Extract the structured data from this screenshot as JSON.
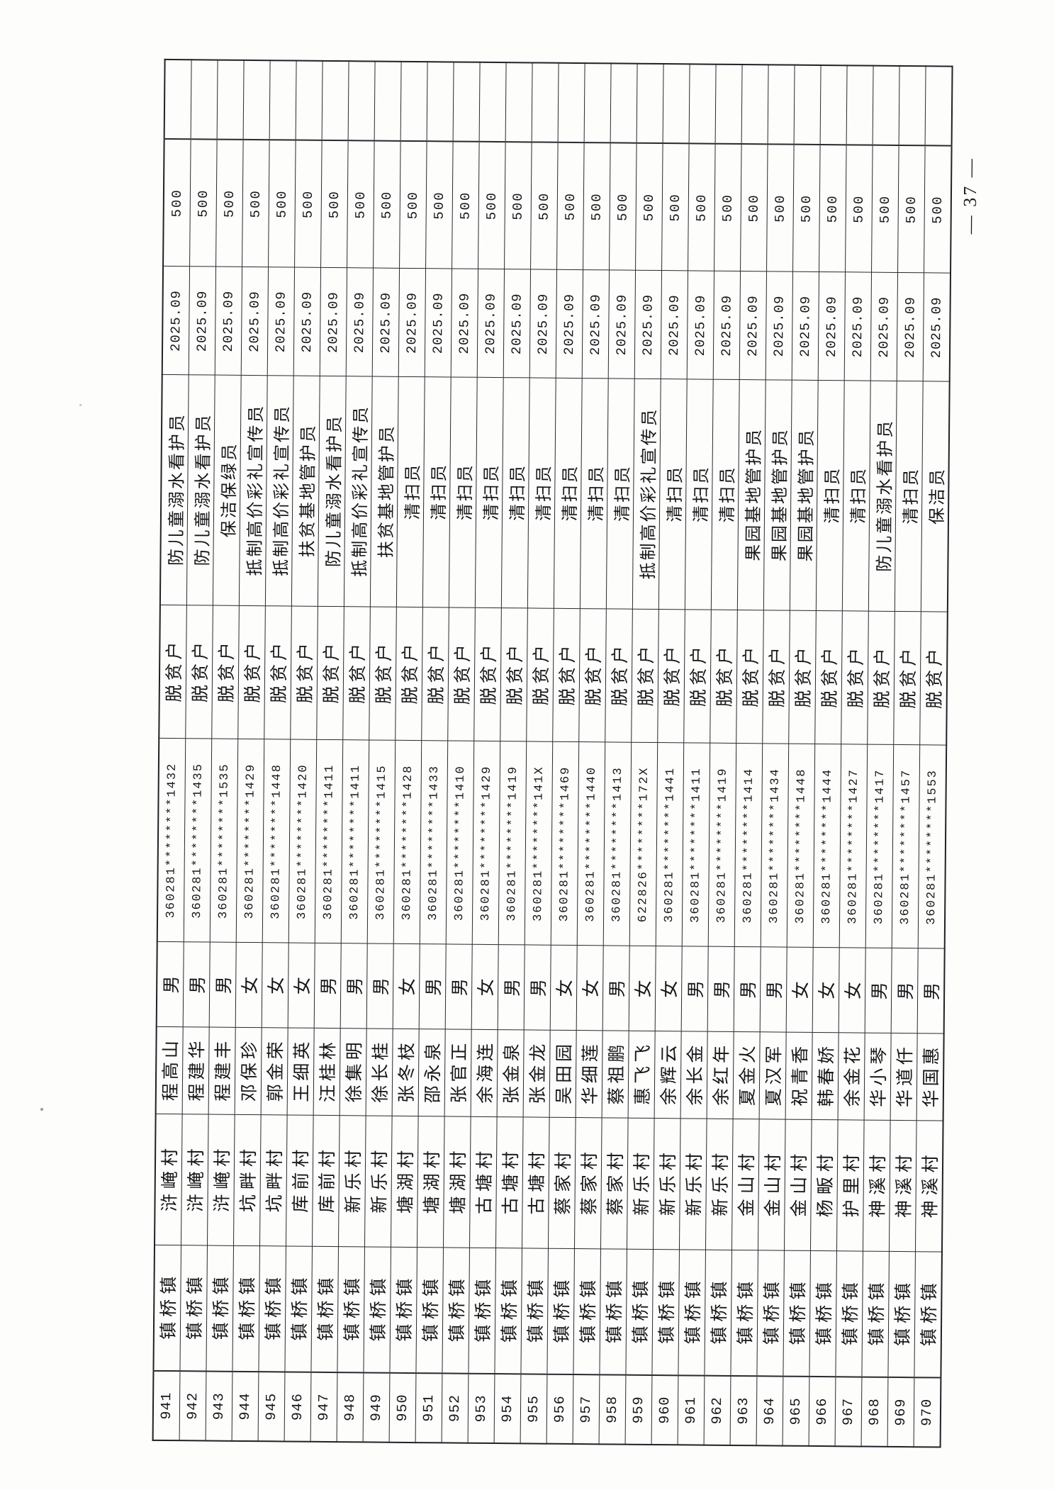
{
  "page": {
    "page_number": "— 37 —"
  },
  "table": {
    "town_repeated": "镇桥镇",
    "category_repeated": "脱贫户",
    "month_repeated": "2025.09",
    "amount_repeated": "500",
    "rows": [
      {
        "no": "941",
        "town": "镇桥镇",
        "village": "浒崦村",
        "name": "程高山",
        "gender": "男",
        "id_number": "360281********1432",
        "category": "脱贫户",
        "job": "防儿童溺水看护员",
        "month": "2025.09",
        "amount": "500"
      },
      {
        "no": "942",
        "town": "镇桥镇",
        "village": "浒崦村",
        "name": "程建华",
        "gender": "男",
        "id_number": "360281********1435",
        "category": "脱贫户",
        "job": "防儿童溺水看护员",
        "month": "2025.09",
        "amount": "500"
      },
      {
        "no": "943",
        "town": "镇桥镇",
        "village": "浒崦村",
        "name": "程建丰",
        "gender": "男",
        "id_number": "360281********1535",
        "category": "脱贫户",
        "job": "保洁保绿员",
        "month": "2025.09",
        "amount": "500"
      },
      {
        "no": "944",
        "town": "镇桥镇",
        "village": "坑畔村",
        "name": "邓保珍",
        "gender": "女",
        "id_number": "360281********1429",
        "category": "脱贫户",
        "job": "抵制高价彩礼宣传员",
        "month": "2025.09",
        "amount": "500"
      },
      {
        "no": "945",
        "town": "镇桥镇",
        "village": "坑畔村",
        "name": "郭金荣",
        "gender": "女",
        "id_number": "360281********1448",
        "category": "脱贫户",
        "job": "抵制高价彩礼宣传员",
        "month": "2025.09",
        "amount": "500"
      },
      {
        "no": "946",
        "town": "镇桥镇",
        "village": "库前村",
        "name": "王细英",
        "gender": "女",
        "id_number": "360281********1420",
        "category": "脱贫户",
        "job": "扶贫基地管护员",
        "month": "2025.09",
        "amount": "500"
      },
      {
        "no": "947",
        "town": "镇桥镇",
        "village": "库前村",
        "name": "汪桂林",
        "gender": "男",
        "id_number": "360281********1411",
        "category": "脱贫户",
        "job": "防儿童溺水看护员",
        "month": "2025.09",
        "amount": "500"
      },
      {
        "no": "948",
        "town": "镇桥镇",
        "village": "新乐村",
        "name": "徐集明",
        "gender": "男",
        "id_number": "360281********1411",
        "category": "脱贫户",
        "job": "抵制高价彩礼宣传员",
        "month": "2025.09",
        "amount": "500"
      },
      {
        "no": "949",
        "town": "镇桥镇",
        "village": "新乐村",
        "name": "徐长桂",
        "gender": "男",
        "id_number": "360281********1415",
        "category": "脱贫户",
        "job": "扶贫基地管护员",
        "month": "2025.09",
        "amount": "500"
      },
      {
        "no": "950",
        "town": "镇桥镇",
        "village": "塘湖村",
        "name": "张冬枝",
        "gender": "女",
        "id_number": "360281********1428",
        "category": "脱贫户",
        "job": "清扫员",
        "month": "2025.09",
        "amount": "500"
      },
      {
        "no": "951",
        "town": "镇桥镇",
        "village": "塘湖村",
        "name": "邵永泉",
        "gender": "男",
        "id_number": "360281********1433",
        "category": "脱贫户",
        "job": "清扫员",
        "month": "2025.09",
        "amount": "500"
      },
      {
        "no": "952",
        "town": "镇桥镇",
        "village": "塘湖村",
        "name": "张官正",
        "gender": "男",
        "id_number": "360281********1410",
        "category": "脱贫户",
        "job": "清扫员",
        "month": "2025.09",
        "amount": "500"
      },
      {
        "no": "953",
        "town": "镇桥镇",
        "village": "古塘村",
        "name": "余海连",
        "gender": "女",
        "id_number": "360281********1429",
        "category": "脱贫户",
        "job": "清扫员",
        "month": "2025.09",
        "amount": "500"
      },
      {
        "no": "954",
        "town": "镇桥镇",
        "village": "古塘村",
        "name": "张金泉",
        "gender": "男",
        "id_number": "360281********1419",
        "category": "脱贫户",
        "job": "清扫员",
        "month": "2025.09",
        "amount": "500"
      },
      {
        "no": "955",
        "town": "镇桥镇",
        "village": "古塘村",
        "name": "张金龙",
        "gender": "男",
        "id_number": "360281********141X",
        "category": "脱贫户",
        "job": "清扫员",
        "month": "2025.09",
        "amount": "500"
      },
      {
        "no": "956",
        "town": "镇桥镇",
        "village": "蔡家村",
        "name": "吴田园",
        "gender": "女",
        "id_number": "360281********1469",
        "category": "脱贫户",
        "job": "清扫员",
        "month": "2025.09",
        "amount": "500"
      },
      {
        "no": "957",
        "town": "镇桥镇",
        "village": "蔡家村",
        "name": "华细莲",
        "gender": "女",
        "id_number": "360281********1440",
        "category": "脱贫户",
        "job": "清扫员",
        "month": "2025.09",
        "amount": "500"
      },
      {
        "no": "958",
        "town": "镇桥镇",
        "village": "蔡家村",
        "name": "蔡祖鹏",
        "gender": "男",
        "id_number": "360281********1413",
        "category": "脱贫户",
        "job": "清扫员",
        "month": "2025.09",
        "amount": "500"
      },
      {
        "no": "959",
        "town": "镇桥镇",
        "village": "新乐村",
        "name": "惠飞飞",
        "gender": "女",
        "id_number": "622826********172X",
        "category": "脱贫户",
        "job": "抵制高价彩礼宣传员",
        "month": "2025.09",
        "amount": "500"
      },
      {
        "no": "960",
        "town": "镇桥镇",
        "village": "新乐村",
        "name": "余辉云",
        "gender": "女",
        "id_number": "360281********1441",
        "category": "脱贫户",
        "job": "清扫员",
        "month": "2025.09",
        "amount": "500"
      },
      {
        "no": "961",
        "town": "镇桥镇",
        "village": "新乐村",
        "name": "余长金",
        "gender": "男",
        "id_number": "360281********1411",
        "category": "脱贫户",
        "job": "清扫员",
        "month": "2025.09",
        "amount": "500"
      },
      {
        "no": "962",
        "town": "镇桥镇",
        "village": "新乐村",
        "name": "余红年",
        "gender": "男",
        "id_number": "360281********1419",
        "category": "脱贫户",
        "job": "清扫员",
        "month": "2025.09",
        "amount": "500"
      },
      {
        "no": "963",
        "town": "镇桥镇",
        "village": "金山村",
        "name": "夏金火",
        "gender": "男",
        "id_number": "360281********1414",
        "category": "脱贫户",
        "job": "果园基地管护员",
        "month": "2025.09",
        "amount": "500"
      },
      {
        "no": "964",
        "town": "镇桥镇",
        "village": "金山村",
        "name": "夏汉军",
        "gender": "男",
        "id_number": "360281********1434",
        "category": "脱贫户",
        "job": "果园基地管护员",
        "month": "2025.09",
        "amount": "500"
      },
      {
        "no": "965",
        "town": "镇桥镇",
        "village": "金山村",
        "name": "祝青香",
        "gender": "女",
        "id_number": "360281********1448",
        "category": "脱贫户",
        "job": "果园基地管护员",
        "month": "2025.09",
        "amount": "500"
      },
      {
        "no": "966",
        "town": "镇桥镇",
        "village": "杨畈村",
        "name": "韩春娇",
        "gender": "女",
        "id_number": "360281********1444",
        "category": "脱贫户",
        "job": "清扫员",
        "month": "2025.09",
        "amount": "500"
      },
      {
        "no": "967",
        "town": "镇桥镇",
        "village": "护里村",
        "name": "余金花",
        "gender": "女",
        "id_number": "360281********1427",
        "category": "脱贫户",
        "job": "清扫员",
        "month": "2025.09",
        "amount": "500"
      },
      {
        "no": "968",
        "town": "镇桥镇",
        "village": "神溪村",
        "name": "华小琴",
        "gender": "男",
        "id_number": "360281********1417",
        "category": "脱贫户",
        "job": "防儿童溺水看护员",
        "month": "2025.09",
        "amount": "500"
      },
      {
        "no": "969",
        "town": "镇桥镇",
        "village": "神溪村",
        "name": "华道仟",
        "gender": "男",
        "id_number": "360281********1457",
        "category": "脱贫户",
        "job": "清扫员",
        "month": "2025.09",
        "amount": "500"
      },
      {
        "no": "970",
        "town": "镇桥镇",
        "village": "神溪村",
        "name": "华国惠",
        "gender": "男",
        "id_number": "360281********1553",
        "category": "脱贫户",
        "job": "保洁员",
        "month": "2025.09",
        "amount": "500"
      }
    ]
  }
}
